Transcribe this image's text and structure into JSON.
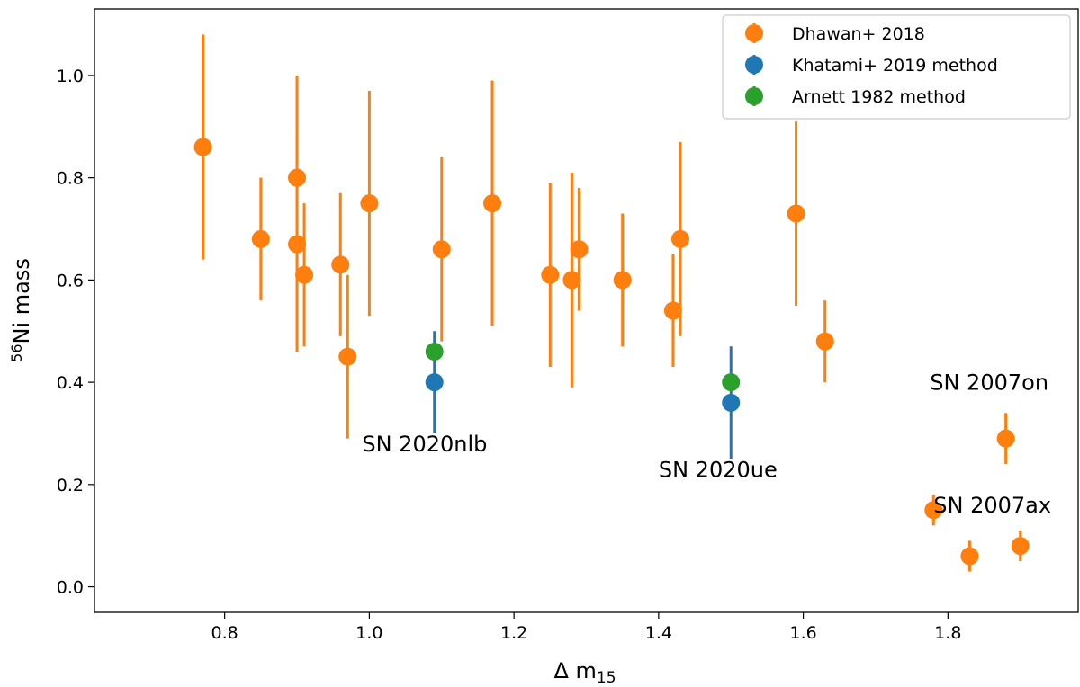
{
  "chart_data": {
    "type": "scatter",
    "title": "",
    "xlabel": "Δ m",
    "xlabel_sub": "15",
    "ylabel_sup": "56",
    "ylabel": "Ni mass",
    "xlim": [
      0.62,
      1.98
    ],
    "ylim": [
      -0.05,
      1.13
    ],
    "xticks": [
      0.8,
      1.0,
      1.2,
      1.4,
      1.6,
      1.8
    ],
    "xtick_labels": [
      "0.8",
      "1.0",
      "1.2",
      "1.4",
      "1.6",
      "1.8"
    ],
    "yticks": [
      0.0,
      0.2,
      0.4,
      0.6,
      0.8,
      1.0
    ],
    "ytick_labels": [
      "0.0",
      "0.2",
      "0.4",
      "0.6",
      "0.8",
      "1.0"
    ],
    "legend_position": "top-right",
    "series": [
      {
        "name": "Dhawan+ 2018",
        "color": "#ff7f0e",
        "points": [
          {
            "x": 0.77,
            "y": 0.86,
            "lo": 0.64,
            "hi": 1.08
          },
          {
            "x": 0.85,
            "y": 0.68,
            "lo": 0.56,
            "hi": 0.8
          },
          {
            "x": 0.9,
            "y": 0.8,
            "lo": 0.6,
            "hi": 1.0
          },
          {
            "x": 0.9,
            "y": 0.67,
            "lo": 0.46,
            "hi": 0.88
          },
          {
            "x": 0.91,
            "y": 0.61,
            "lo": 0.47,
            "hi": 0.75
          },
          {
            "x": 0.96,
            "y": 0.63,
            "lo": 0.49,
            "hi": 0.77
          },
          {
            "x": 0.97,
            "y": 0.45,
            "lo": 0.29,
            "hi": 0.61
          },
          {
            "x": 1.0,
            "y": 0.75,
            "lo": 0.53,
            "hi": 0.97
          },
          {
            "x": 1.1,
            "y": 0.66,
            "lo": 0.48,
            "hi": 0.84
          },
          {
            "x": 1.17,
            "y": 0.75,
            "lo": 0.51,
            "hi": 0.99
          },
          {
            "x": 1.25,
            "y": 0.61,
            "lo": 0.43,
            "hi": 0.79
          },
          {
            "x": 1.28,
            "y": 0.6,
            "lo": 0.39,
            "hi": 0.81
          },
          {
            "x": 1.29,
            "y": 0.66,
            "lo": 0.54,
            "hi": 0.78
          },
          {
            "x": 1.35,
            "y": 0.6,
            "lo": 0.47,
            "hi": 0.73
          },
          {
            "x": 1.42,
            "y": 0.54,
            "lo": 0.43,
            "hi": 0.65
          },
          {
            "x": 1.43,
            "y": 0.68,
            "lo": 0.49,
            "hi": 0.87
          },
          {
            "x": 1.59,
            "y": 0.73,
            "lo": 0.55,
            "hi": 0.91
          },
          {
            "x": 1.63,
            "y": 0.48,
            "lo": 0.4,
            "hi": 0.56
          },
          {
            "x": 1.78,
            "y": 0.15,
            "lo": 0.12,
            "hi": 0.18
          },
          {
            "x": 1.83,
            "y": 0.06,
            "lo": 0.03,
            "hi": 0.09
          },
          {
            "x": 1.88,
            "y": 0.29,
            "lo": 0.24,
            "hi": 0.34
          },
          {
            "x": 1.9,
            "y": 0.08,
            "lo": 0.05,
            "hi": 0.11
          }
        ]
      },
      {
        "name": "Khatami+ 2019 method",
        "color": "#1f77b4",
        "points": [
          {
            "x": 1.09,
            "y": 0.4,
            "lo": 0.3,
            "hi": 0.5
          },
          {
            "x": 1.5,
            "y": 0.36,
            "lo": 0.25,
            "hi": 0.47
          }
        ]
      },
      {
        "name": "Arnett 1982 method",
        "color": "#2ca02c",
        "points": [
          {
            "x": 1.09,
            "y": 0.46,
            "lo": 0.46,
            "hi": 0.46
          },
          {
            "x": 1.5,
            "y": 0.4,
            "lo": 0.4,
            "hi": 0.4
          }
        ]
      }
    ],
    "annotations": [
      {
        "text": "SN 2020nlb",
        "x": 0.99,
        "y": 0.265
      },
      {
        "text": "SN 2020ue",
        "x": 1.4,
        "y": 0.215
      },
      {
        "text": "SN 2007on",
        "x": 1.775,
        "y": 0.385
      },
      {
        "text": "SN 2007ax",
        "x": 1.78,
        "y": 0.145
      }
    ]
  }
}
